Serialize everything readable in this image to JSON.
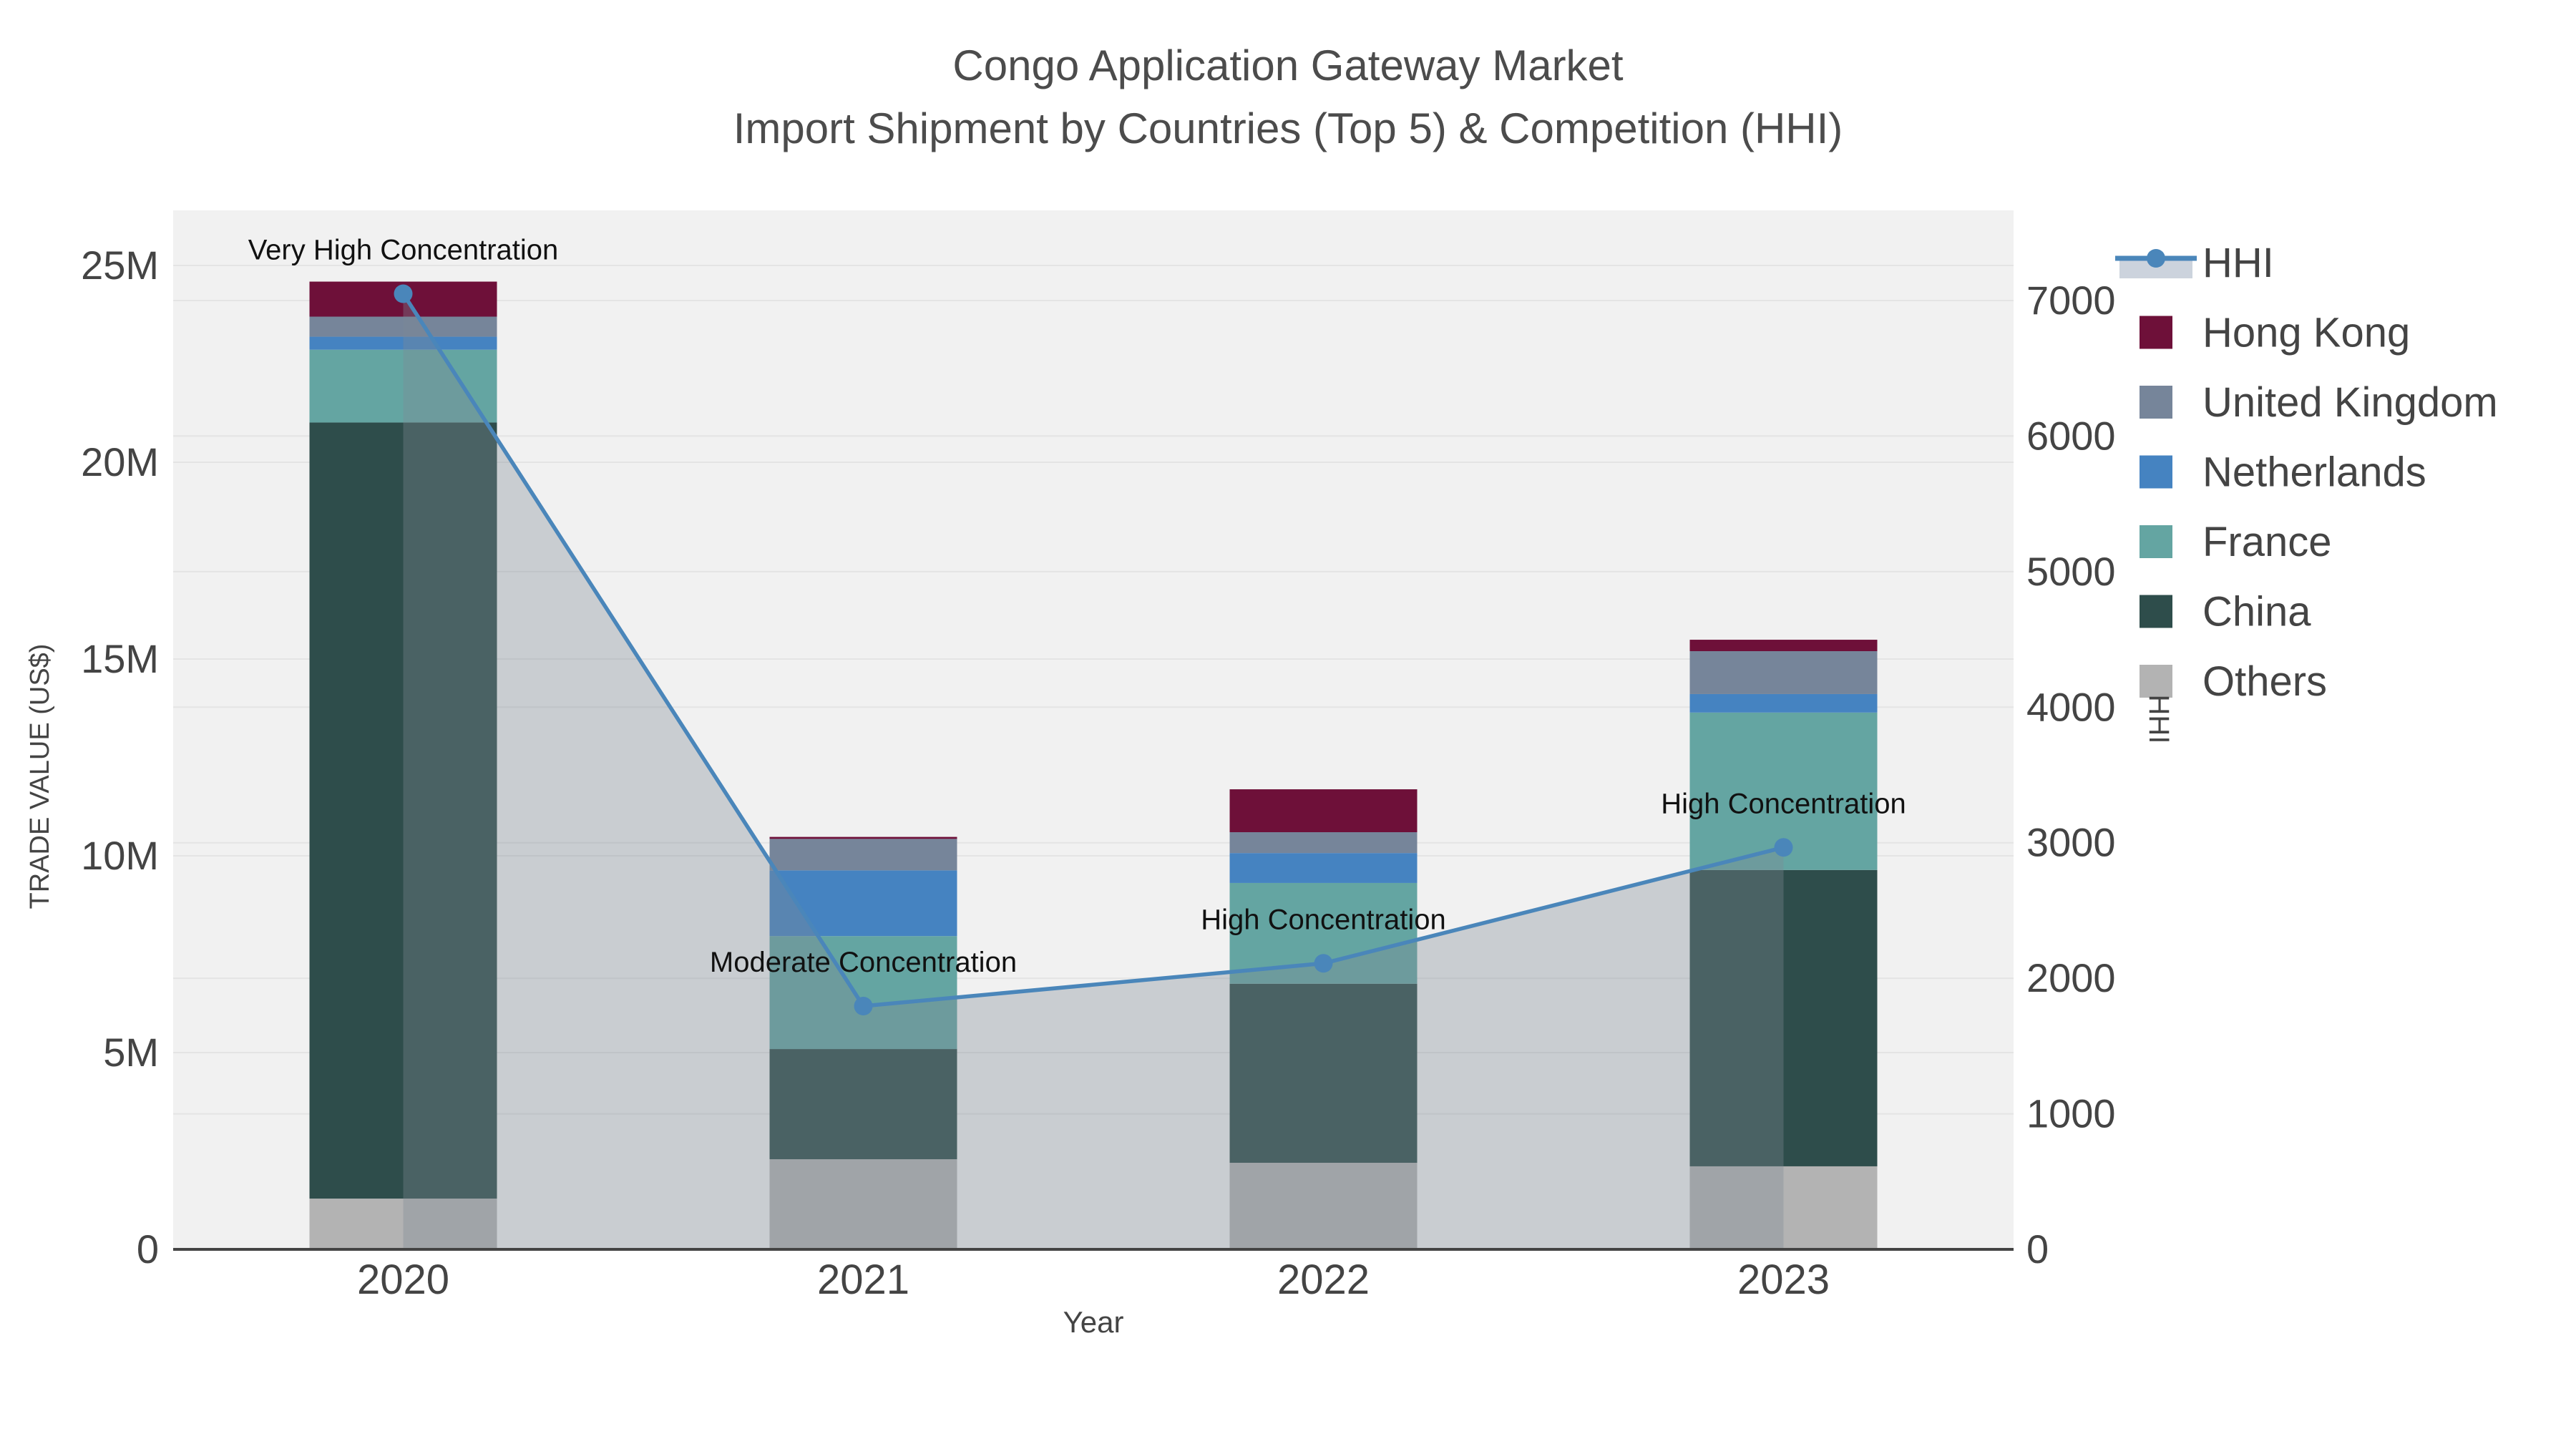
{
  "chart_data": {
    "type": "bar",
    "subtype": "stacked-bar-with-secondary-axis-line",
    "title_line1": "Congo Application Gateway Market",
    "title_line2": "Import Shipment by Countries (Top 5) & Competition (HHI)",
    "xlabel": "Year",
    "ylabel": "TRADE VALUE (US$)",
    "y2label": "HHI",
    "categories": [
      "2020",
      "2021",
      "2022",
      "2023"
    ],
    "unit": "M US$",
    "ylim_musd": [
      0,
      26.4
    ],
    "y2lim": [
      0,
      7660
    ],
    "grid": "on",
    "legend_position": "right-top",
    "series": [
      {
        "name": "Others",
        "color": "#b3b3b3",
        "values_musd": [
          1.29,
          2.29,
          2.2,
          2.11
        ]
      },
      {
        "name": "China",
        "color": "#2e4d4b",
        "values_musd": [
          19.72,
          2.8,
          4.55,
          7.53
        ]
      },
      {
        "name": "France",
        "color": "#64a5a2",
        "values_musd": [
          1.85,
          2.87,
          2.56,
          4.0
        ]
      },
      {
        "name": "Netherlands",
        "color": "#4583c1",
        "values_musd": [
          0.33,
          1.67,
          0.76,
          0.47
        ]
      },
      {
        "name": "United Kingdom",
        "color": "#76859a",
        "values_musd": [
          0.51,
          0.8,
          0.53,
          1.09
        ]
      },
      {
        "name": "Hong Kong",
        "color": "#6e1039",
        "values_musd": [
          0.89,
          0.05,
          1.09,
          0.29
        ]
      }
    ],
    "stack_order": "bottom-to-top as listed",
    "totals_musd": [
      24.59,
      10.48,
      11.69,
      15.49
    ],
    "hhi_line": {
      "name": "HHI",
      "line_color": "#4a86ba",
      "area_fill": "rgba(125,138,150,0.35)",
      "legend_band_color": "#ccd3dd",
      "values": [
        7050,
        1795,
        2110,
        2965
      ]
    },
    "annotations": [
      {
        "year": "2020",
        "text": "Very High Concentration"
      },
      {
        "year": "2021",
        "text": "Moderate Concentration"
      },
      {
        "year": "2022",
        "text": "High Concentration"
      },
      {
        "year": "2023",
        "text": "High Concentration"
      }
    ],
    "yticks": [
      {
        "value": 0,
        "label": "0"
      },
      {
        "value": 5,
        "label": "5M"
      },
      {
        "value": 10,
        "label": "10M"
      },
      {
        "value": 15,
        "label": "15M"
      },
      {
        "value": 20,
        "label": "20M"
      },
      {
        "value": 25,
        "label": "25M"
      }
    ],
    "y2ticks": [
      {
        "value": 0,
        "label": "0"
      },
      {
        "value": 1000,
        "label": "1000"
      },
      {
        "value": 2000,
        "label": "2000"
      },
      {
        "value": 3000,
        "label": "3000"
      },
      {
        "value": 4000,
        "label": "4000"
      },
      {
        "value": 5000,
        "label": "5000"
      },
      {
        "value": 6000,
        "label": "6000"
      },
      {
        "value": 7000,
        "label": "7000"
      }
    ],
    "legend_entries": [
      "HHI",
      "Hong Kong",
      "United Kingdom",
      "Netherlands",
      "France",
      "China",
      "Others"
    ],
    "colors": {
      "plot_background": "#f1f1f1",
      "page_background": "#ffffff",
      "gridline": "#e4e4e4",
      "axis_line": "#444444",
      "tick_text": "#444444",
      "title_text": "#4c4c4c",
      "annotation_text": "#111111"
    }
  }
}
